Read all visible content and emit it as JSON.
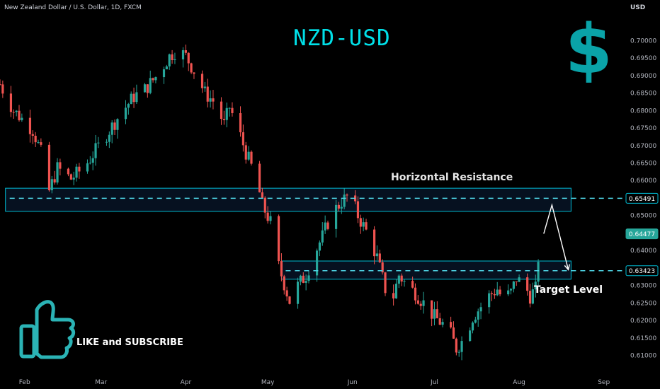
{
  "header": {
    "symbol_info": "New Zealand Dollar / U.S. Dollar, 1D, FXCM",
    "currency": "USD"
  },
  "overlay": {
    "title": "NZD-USD",
    "currency_glyph": "$",
    "resistance_label": "Horizontal Resistance",
    "target_label": "Target Level",
    "cta_text": "LIKE and SUBSCRIBE"
  },
  "icons": {
    "thumbs_up": "thumbs-up-icon",
    "dollar": "dollar-icon"
  },
  "colors": {
    "background": "#000000",
    "up_candle": "#26a69a",
    "down_candle": "#ef5350",
    "zone_border": "#00bcd4",
    "zone_fill": "#0b1f3a",
    "title": "#00e0e8",
    "current_price_tag": "#26a69a"
  },
  "chart_data": {
    "type": "candlestick",
    "x_labels": [
      "Feb",
      "Mar",
      "Apr",
      "May",
      "Jun",
      "Jul",
      "Aug",
      "Sep"
    ],
    "x_label_days": [
      31,
      59,
      90,
      120,
      151,
      181,
      212,
      243
    ],
    "x_range_days": [
      22,
      248
    ],
    "y_ticks": [
      "0.70000",
      "0.69500",
      "0.69000",
      "0.68500",
      "0.68000",
      "0.67500",
      "0.67000",
      "0.66500",
      "0.66000",
      "0.65500",
      "0.65000",
      "0.64000",
      "0.63500",
      "0.63000",
      "0.62500",
      "0.62000",
      "0.61500",
      "0.61000"
    ],
    "y_range": [
      0.6075,
      0.7035
    ],
    "close_anchors": [
      [
        22,
        0.6875
      ],
      [
        27,
        0.68
      ],
      [
        34,
        0.6745
      ],
      [
        37,
        0.668
      ],
      [
        40,
        0.657
      ],
      [
        43,
        0.6635
      ],
      [
        48,
        0.6605
      ],
      [
        53,
        0.664
      ],
      [
        60,
        0.672
      ],
      [
        66,
        0.679
      ],
      [
        71,
        0.684
      ],
      [
        75,
        0.686
      ],
      [
        80,
        0.6905
      ],
      [
        84,
        0.6955
      ],
      [
        87,
        0.6975
      ],
      [
        90,
        0.6955
      ],
      [
        94,
        0.69
      ],
      [
        97,
        0.685
      ],
      [
        101,
        0.682
      ],
      [
        104,
        0.676
      ],
      [
        106,
        0.681
      ],
      [
        109,
        0.675
      ],
      [
        112,
        0.668
      ],
      [
        116,
        0.66
      ],
      [
        118,
        0.653
      ],
      [
        121,
        0.648
      ],
      [
        123,
        0.638
      ],
      [
        125,
        0.633
      ],
      [
        127,
        0.628
      ],
      [
        129,
        0.623
      ],
      [
        131,
        0.63
      ],
      [
        134,
        0.633
      ],
      [
        137,
        0.639
      ],
      [
        140,
        0.644
      ],
      [
        143,
        0.65
      ],
      [
        147,
        0.654
      ],
      [
        150,
        0.656
      ],
      [
        153,
        0.65
      ],
      [
        157,
        0.644
      ],
      [
        160,
        0.638
      ],
      [
        163,
        0.629
      ],
      [
        165,
        0.624
      ],
      [
        168,
        0.633
      ],
      [
        171,
        0.63
      ],
      [
        174,
        0.628
      ],
      [
        177,
        0.625
      ],
      [
        181,
        0.621
      ],
      [
        184,
        0.619
      ],
      [
        187,
        0.616
      ],
      [
        189,
        0.612
      ],
      [
        192,
        0.615
      ],
      [
        195,
        0.621
      ],
      [
        198,
        0.624
      ],
      [
        201,
        0.627
      ],
      [
        204,
        0.629
      ],
      [
        206,
        0.626
      ],
      [
        209,
        0.628
      ],
      [
        211,
        0.632
      ],
      [
        214,
        0.63
      ],
      [
        216,
        0.627
      ],
      [
        218,
        0.629
      ],
      [
        219,
        0.638
      ],
      [
        220,
        0.642
      ],
      [
        221,
        0.6448
      ]
    ],
    "resistance_zone": {
      "label": "Horizontal Resistance",
      "price_low": 0.6512,
      "price_high": 0.6578,
      "level": 0.65491,
      "start_day": 24,
      "end_day": 231
    },
    "target_zone": {
      "label": "Target Level",
      "price_low": 0.6318,
      "price_high": 0.637,
      "level": 0.63423,
      "start_day": 125,
      "end_day": 231
    },
    "current_price": 0.64477,
    "price_tags": [
      "0.65491",
      "0.64477",
      "0.63423"
    ],
    "projection": [
      [
        221,
        0.6448
      ],
      [
        224,
        0.653
      ],
      [
        230,
        0.6345
      ]
    ]
  }
}
